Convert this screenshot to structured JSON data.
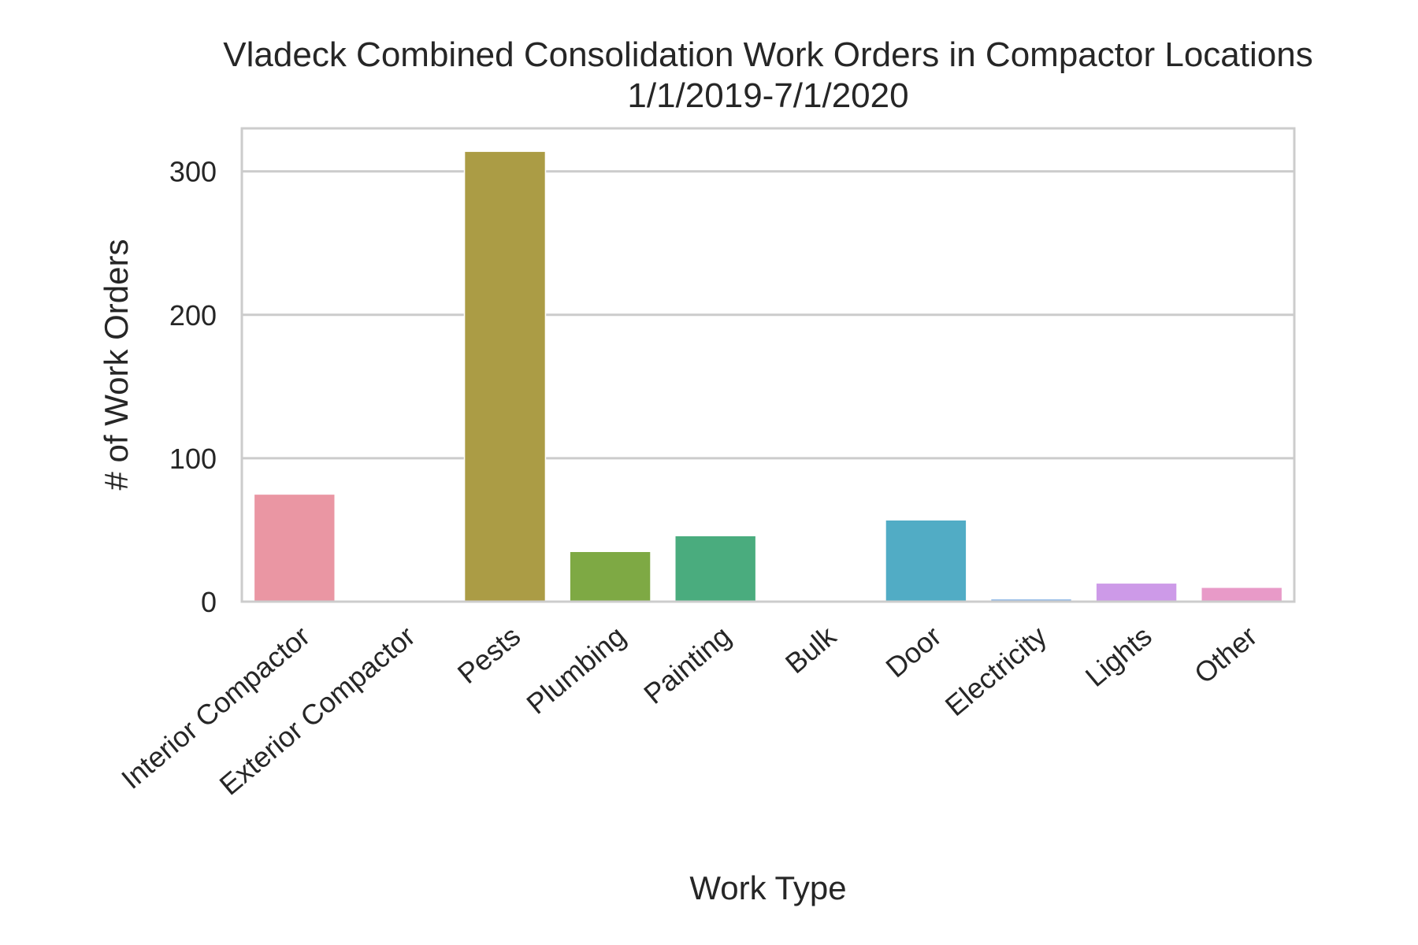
{
  "chart_data": {
    "type": "bar",
    "title": "Vladeck Combined Consolidation Work Orders in Compactor Locations",
    "subtitle": "1/1/2019-7/1/2020",
    "xlabel": "Work Type",
    "ylabel": "# of Work Orders",
    "categories": [
      "Interior Compactor",
      "Exterior Compactor",
      "Pests",
      "Plumbing",
      "Painting",
      "Bulk",
      "Door",
      "Electricity",
      "Lights",
      "Other"
    ],
    "values": [
      75,
      0,
      314,
      35,
      46,
      0,
      57,
      2,
      13,
      10
    ],
    "colors": [
      "#ea96a3",
      "#d69a5b",
      "#ab9c45",
      "#7ea944",
      "#4aac7e",
      "#4daea0",
      "#51acc5",
      "#8fb8e6",
      "#cd9ae8",
      "#e89ac8"
    ],
    "yticks": [
      0,
      100,
      200,
      300
    ],
    "ylim": [
      0,
      330
    ],
    "grid": true
  }
}
